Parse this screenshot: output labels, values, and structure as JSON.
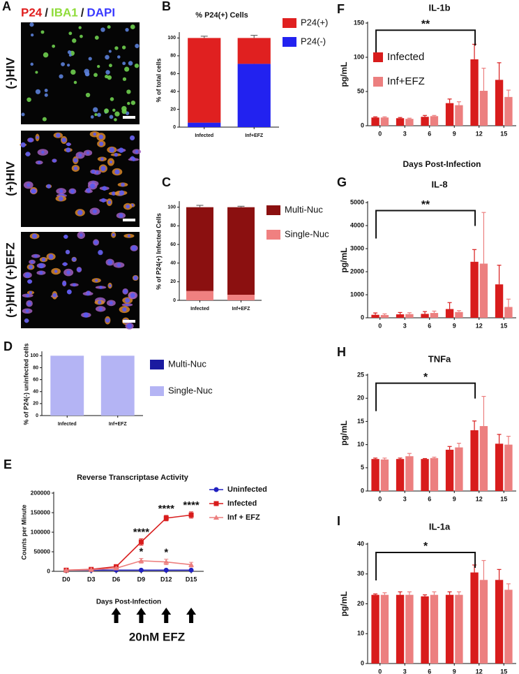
{
  "panel_a": {
    "panel": "A",
    "stains": [
      "P24",
      "/",
      "IBA1",
      "/",
      "DAPI"
    ],
    "stain_colors": [
      "#e02020",
      "#222222",
      "#8fdc3a",
      "#222222",
      "#3a3aff"
    ],
    "conditions": [
      "(-)HIV",
      "(+)HIV",
      "(+)HIV (+)EFZ"
    ]
  },
  "chart_data": [
    {
      "panel": "B",
      "type": "stacked_bar",
      "title": "% P24(+) Cells",
      "y_label": "% of total cells",
      "categories": [
        "Infected",
        "Inf+EFZ"
      ],
      "series": [
        {
          "name": "P24(-)",
          "color": "#2222f0",
          "values": [
            5,
            71
          ],
          "errors": [
            3,
            2
          ]
        },
        {
          "name": "P24(+)",
          "color": "#e02020",
          "values": [
            95,
            29
          ],
          "errors": [
            2,
            3
          ]
        }
      ],
      "ylim": [
        0,
        105
      ],
      "yticks": [
        0,
        20,
        40,
        60,
        80,
        100
      ]
    },
    {
      "panel": "C",
      "type": "stacked_bar",
      "y_label": "% of P24(+) Infected  Cells",
      "categories": [
        "Infected",
        "Inf+EFZ"
      ],
      "series": [
        {
          "name": "Single-Nuc",
          "color": "#f08080",
          "values": [
            10,
            6
          ],
          "errors": [
            2,
            1
          ]
        },
        {
          "name": "Multi-Nuc",
          "color": "#8b1010",
          "values": [
            90,
            94
          ],
          "errors": [
            2,
            1
          ]
        }
      ],
      "ylim": [
        0,
        105
      ],
      "yticks": [
        0,
        20,
        40,
        60,
        80,
        100
      ]
    },
    {
      "panel": "D",
      "type": "stacked_bar",
      "y_label": "% of P24(-) uninfected cells",
      "categories": [
        "Infected",
        "Inf+EFZ"
      ],
      "series": [
        {
          "name": "Single-Nuc",
          "color": "#b4b4f4",
          "values": [
            100,
            100
          ]
        },
        {
          "name": "Multi-Nuc",
          "color": "#1a1aa0",
          "values": [
            0,
            0
          ]
        }
      ],
      "ylim": [
        0,
        105
      ],
      "yticks": [
        0,
        20,
        40,
        60,
        80,
        100
      ]
    },
    {
      "panel": "E",
      "type": "line",
      "title": "Reverse Transcriptase Activity",
      "y_label": "Counts per Minute",
      "x_label": "Days Post-Infection",
      "categories": [
        "D0",
        "D3",
        "D6",
        "D9",
        "D12",
        "D15"
      ],
      "series": [
        {
          "name": "Uninfected",
          "color": "#2020c0",
          "marker": "circle",
          "values": [
            3000,
            3000,
            3000,
            3000,
            3000,
            3000
          ],
          "errors": [
            500,
            500,
            500,
            500,
            500,
            500
          ]
        },
        {
          "name": "Infected",
          "color": "#d81c1c",
          "marker": "square",
          "values": [
            3000,
            5000,
            12000,
            75000,
            136000,
            144000
          ],
          "errors": [
            500,
            800,
            1500,
            8000,
            7000,
            8000
          ]
        },
        {
          "name": "Inf + EFZ",
          "color": "#ec7f7f",
          "marker": "triangle",
          "values": [
            3000,
            4000,
            8000,
            27000,
            24000,
            17000
          ],
          "errors": [
            500,
            800,
            1500,
            6000,
            7000,
            6000
          ]
        }
      ],
      "ylim": [
        0,
        200000
      ],
      "yticks": [
        0,
        50000,
        100000,
        150000,
        200000
      ],
      "annotations": [
        "****",
        "****",
        "****",
        "*",
        "*",
        "20nM EFZ"
      ]
    },
    {
      "panel": "F",
      "type": "grouped_bar",
      "title": "IL-1b",
      "y_label": "pg/mL",
      "x_label": "Days Post-Infection",
      "categories": [
        "0",
        "3",
        "6",
        "9",
        "12",
        "15"
      ],
      "series": [
        {
          "name": "Infected",
          "color": "#d81c1c",
          "values": [
            12,
            11,
            13,
            33,
            97,
            67
          ],
          "errors": [
            1,
            1,
            2,
            6,
            22,
            25
          ]
        },
        {
          "name": "Inf+EFZ",
          "color": "#ec7f7f",
          "values": [
            12,
            10,
            14,
            30,
            51,
            42
          ],
          "errors": [
            1,
            1,
            1,
            5,
            33,
            10
          ]
        }
      ],
      "ylim": [
        0,
        150
      ],
      "yticks": [
        0,
        50,
        100,
        150
      ],
      "annotations": [
        "**"
      ]
    },
    {
      "panel": "G",
      "type": "grouped_bar",
      "title": "IL-8",
      "y_label": "pg/mL",
      "categories": [
        "0",
        "3",
        "6",
        "9",
        "12",
        "15"
      ],
      "series": [
        {
          "color": "#d81c1c",
          "values": [
            130,
            150,
            170,
            380,
            2430,
            1450
          ],
          "errors": [
            80,
            80,
            100,
            280,
            530,
            830
          ]
        },
        {
          "color": "#ec7f7f",
          "values": [
            120,
            160,
            210,
            250,
            2350,
            470
          ],
          "errors": [
            50,
            60,
            80,
            60,
            2220,
            340
          ]
        }
      ],
      "ylim": [
        0,
        5000
      ],
      "yticks": [
        0,
        1000,
        2000,
        3000,
        4000,
        5000
      ],
      "annotations": [
        "**"
      ]
    },
    {
      "panel": "H",
      "type": "grouped_bar",
      "title": "TNFa",
      "y_label": "pg/mL",
      "categories": [
        "0",
        "3",
        "6",
        "9",
        "12",
        "15"
      ],
      "series": [
        {
          "color": "#d81c1c",
          "values": [
            6.9,
            6.9,
            6.9,
            8.9,
            13.1,
            10.2
          ],
          "errors": [
            0.2,
            0.2,
            0.1,
            0.7,
            2,
            2
          ]
        },
        {
          "color": "#ec7f7f",
          "values": [
            6.8,
            7.5,
            7.1,
            9.4,
            14,
            10
          ],
          "errors": [
            0.3,
            0.6,
            0.2,
            0.9,
            6.4,
            1.8
          ]
        }
      ],
      "ylim": [
        0,
        25
      ],
      "yticks": [
        0,
        5,
        10,
        15,
        20,
        25
      ],
      "annotations": [
        "*"
      ]
    },
    {
      "panel": "I",
      "type": "grouped_bar",
      "title": "IL-1a",
      "y_label": "pg/mL",
      "categories": [
        "0",
        "3",
        "6",
        "9",
        "12",
        "15"
      ],
      "series": [
        {
          "color": "#d81c1c",
          "values": [
            23,
            23,
            22.5,
            23,
            30.5,
            28
          ],
          "errors": [
            0.3,
            1,
            0.5,
            1,
            2.5,
            3.5
          ]
        },
        {
          "color": "#ec7f7f",
          "values": [
            23,
            23,
            23,
            23,
            28,
            24.7
          ],
          "errors": [
            0.7,
            1,
            1,
            1,
            6.5,
            2
          ]
        }
      ],
      "ylim": [
        0,
        40
      ],
      "yticks": [
        0,
        10,
        20,
        30,
        40
      ],
      "annotations": [
        "*"
      ]
    }
  ]
}
